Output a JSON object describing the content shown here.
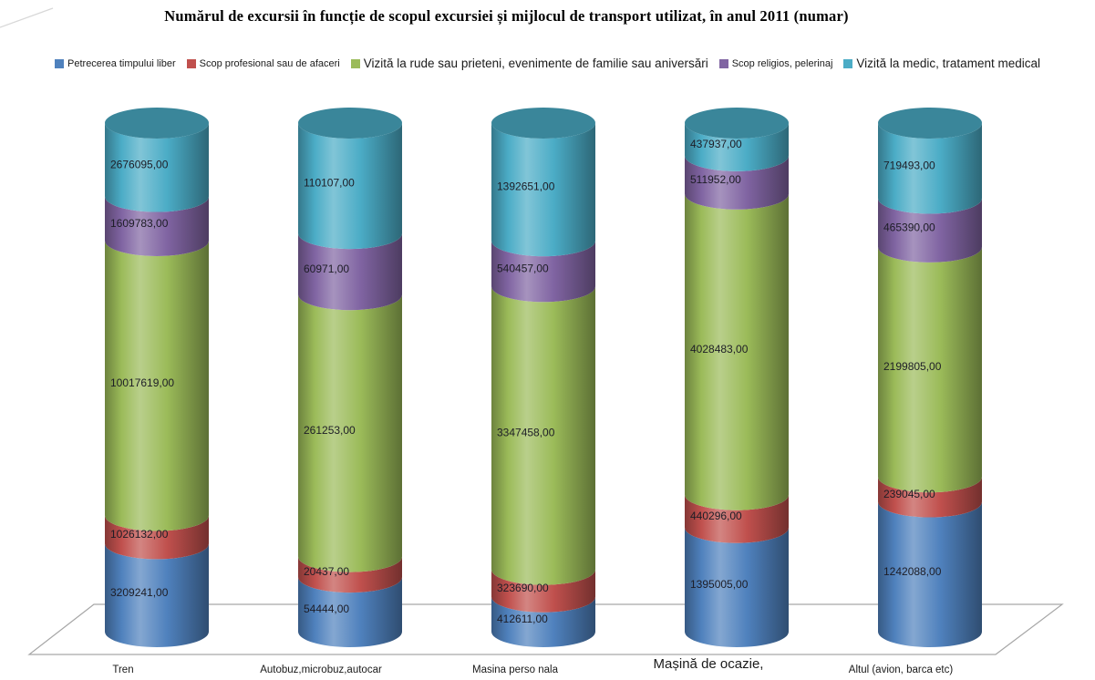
{
  "title": "Numărul de excursii în funcție de scopul excursiei și mijlocul de transport utilizat, în anul 2011 (numar)",
  "chart_data": {
    "type": "bar",
    "subtype": "3d-cylinder-100%-stacked",
    "stacking": "percent",
    "value_format": "decimal-comma-2-suffix-,00",
    "grid": "floor-plane-only",
    "legend_position": "top",
    "categories": [
      "Tren",
      "Autobuz,microbuz,autocar",
      "Masina perso nala",
      "Mașină de ocazie,",
      "Altul (avion, barca etc)"
    ],
    "series": [
      {
        "name": "Petrecerea timpului liber",
        "color": "#4F81BD",
        "values": [
          3209241,
          54444,
          412611,
          1395005,
          1242088
        ]
      },
      {
        "name": "Scop profesional sau  de afaceri",
        "color": "#C0504D",
        "values": [
          1026132,
          20437,
          323690,
          440296,
          239045
        ]
      },
      {
        "name": "Vizită la rude sau prieteni, evenimente de familie sau aniversări",
        "color": "#9BBB59",
        "values": [
          10017619,
          261253,
          3347458,
          4028483,
          2199805
        ]
      },
      {
        "name": "Scop religios, pelerinaj",
        "color": "#8064A2",
        "values": [
          1609783,
          60971,
          540457,
          511952,
          465390
        ]
      },
      {
        "name": "Vizită la medic, tratament medical",
        "color": "#4BACC6",
        "values": [
          2676095,
          110107,
          1392651,
          437937,
          719493
        ]
      }
    ],
    "colors": {
      "floor_line": "#A6A6A6",
      "data_label": "#1d1d26",
      "cylinder_top_cap": "#3A869A"
    }
  }
}
